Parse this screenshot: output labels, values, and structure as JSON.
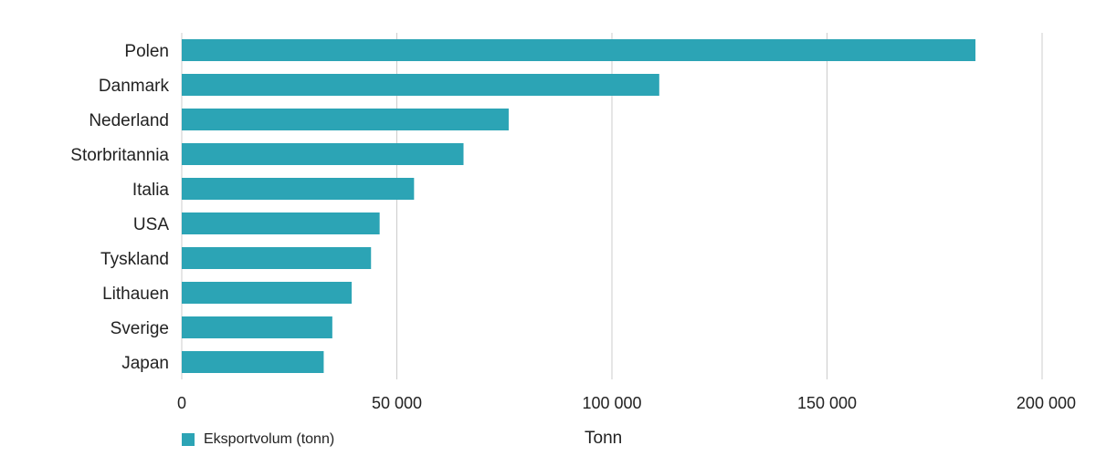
{
  "chart_data": {
    "type": "bar",
    "orientation": "horizontal",
    "categories": [
      "Polen",
      "Danmark",
      "Nederland",
      "Storbritannia",
      "Italia",
      "USA",
      "Tyskland",
      "Lithauen",
      "Sverige",
      "Japan"
    ],
    "series": [
      {
        "name": "Eksportvolum (tonn)",
        "values": [
          184500,
          111000,
          76000,
          65500,
          54000,
          46000,
          44000,
          39500,
          35000,
          33000
        ]
      }
    ],
    "xlim": [
      0,
      200000
    ],
    "xticks": [
      0,
      50000,
      100000,
      150000,
      200000
    ],
    "xtick_labels": [
      "0",
      "50 000",
      "100 000",
      "150 000",
      "200 000"
    ],
    "xlabel": "Tonn",
    "grid": true,
    "legend_position": "bottom-left",
    "colors": {
      "bar": "#2ca4b5",
      "grid": "#cccccc"
    }
  }
}
